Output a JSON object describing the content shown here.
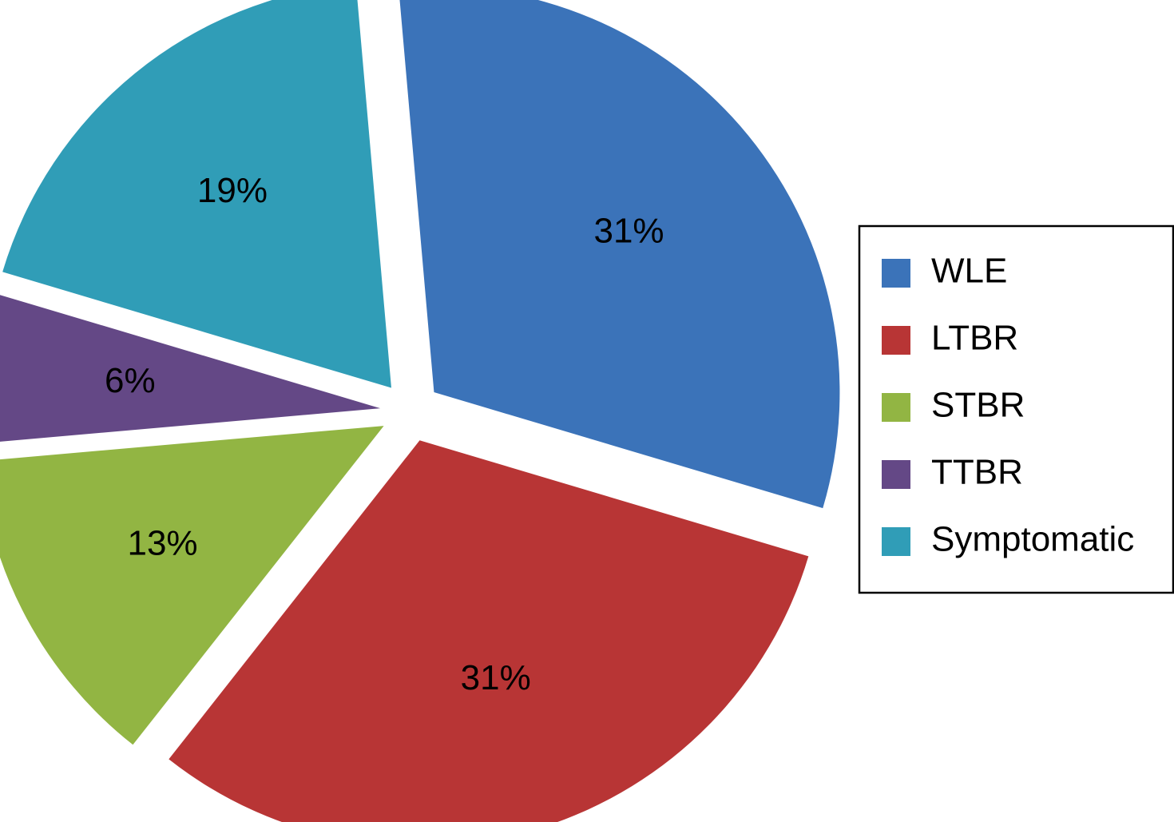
{
  "chart_data": {
    "type": "pie",
    "slices": [
      {
        "name": "WLE",
        "value": 31,
        "label": "31%",
        "color": "#3b73b9"
      },
      {
        "name": "LTBR",
        "value": 31,
        "label": "31%",
        "color": "#b83535"
      },
      {
        "name": "STBR",
        "value": 13,
        "label": "13%",
        "color": "#92b543"
      },
      {
        "name": "TTBR",
        "value": 6,
        "label": "6%",
        "color": "#644886"
      },
      {
        "name": "Symptomatic",
        "value": 19,
        "label": "19%",
        "color": "#309db7"
      }
    ],
    "legend_position": "right",
    "exploded": true
  }
}
